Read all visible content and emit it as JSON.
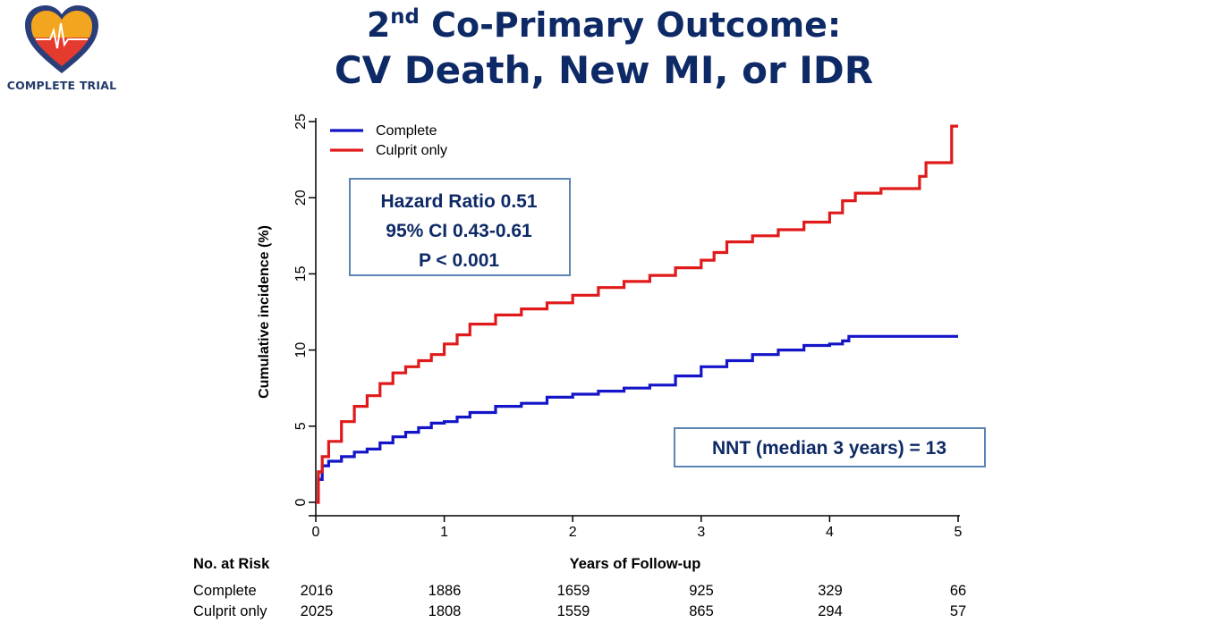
{
  "logo": {
    "text": "COMPLETE TRIAL"
  },
  "title": {
    "line1_main": "2",
    "line1_sup": "nd",
    "line1_rest": " Co-Primary Outcome:",
    "line2": "CV Death, New MI, or IDR"
  },
  "colors": {
    "complete": "#1414c8",
    "culprit": "#e01a1a",
    "box_border": "#5a84b4",
    "box_text": "#0e2a66",
    "title": "#0e2a66"
  },
  "boxes": {
    "hr": [
      "Hazard Ratio 0.51",
      "95% CI 0.43-0.61",
      "P < 0.001"
    ],
    "nnt": "NNT (median 3 years) = 13"
  },
  "risk_table": {
    "header": "No. at Risk",
    "xlabel": "Years of Follow-up",
    "rows": [
      {
        "label": "Complete",
        "values": [
          2016,
          1886,
          1659,
          925,
          329,
          66
        ]
      },
      {
        "label": "Culprit only",
        "values": [
          2025,
          1808,
          1559,
          865,
          294,
          57
        ]
      }
    ]
  },
  "chart_data": {
    "type": "line",
    "step": true,
    "ylabel": "Cumulative incidence (%)",
    "xlabel": "Years of Follow-up",
    "xlim": [
      0,
      5
    ],
    "ylim": [
      0,
      25
    ],
    "xticks": [
      0,
      1,
      2,
      3,
      4,
      5
    ],
    "yticks": [
      0,
      5,
      10,
      15,
      20,
      25
    ],
    "legend_position": "top-left",
    "series": [
      {
        "name": "Complete",
        "color": "#1414c8",
        "x": [
          0,
          0.02,
          0.05,
          0.1,
          0.2,
          0.3,
          0.4,
          0.5,
          0.6,
          0.7,
          0.8,
          0.9,
          1.0,
          1.1,
          1.2,
          1.4,
          1.6,
          1.8,
          2.0,
          2.2,
          2.4,
          2.6,
          2.8,
          3.0,
          3.2,
          3.4,
          3.6,
          3.8,
          4.0,
          4.1,
          4.15,
          4.3,
          5.0
        ],
        "y": [
          0,
          1.5,
          2.4,
          2.7,
          3.0,
          3.3,
          3.5,
          3.9,
          4.3,
          4.6,
          4.9,
          5.2,
          5.3,
          5.6,
          5.9,
          6.3,
          6.5,
          6.9,
          7.1,
          7.3,
          7.5,
          7.7,
          8.3,
          8.9,
          9.3,
          9.7,
          10.0,
          10.3,
          10.4,
          10.6,
          10.9,
          10.9,
          10.9
        ]
      },
      {
        "name": "Culprit only",
        "color": "#e01a1a",
        "x": [
          0,
          0.02,
          0.05,
          0.1,
          0.2,
          0.3,
          0.4,
          0.5,
          0.6,
          0.7,
          0.8,
          0.9,
          1.0,
          1.1,
          1.2,
          1.4,
          1.6,
          1.8,
          2.0,
          2.2,
          2.4,
          2.6,
          2.8,
          3.0,
          3.1,
          3.2,
          3.4,
          3.6,
          3.8,
          4.0,
          4.1,
          4.2,
          4.4,
          4.6,
          4.7,
          4.75,
          4.95,
          5.0
        ],
        "y": [
          0,
          2.0,
          3.0,
          4.0,
          5.3,
          6.3,
          7.0,
          7.8,
          8.5,
          8.9,
          9.3,
          9.7,
          10.4,
          11.0,
          11.7,
          12.3,
          12.7,
          13.1,
          13.6,
          14.1,
          14.5,
          14.9,
          15.4,
          15.9,
          16.4,
          17.1,
          17.5,
          17.9,
          18.4,
          19.0,
          19.8,
          20.3,
          20.6,
          20.6,
          21.4,
          22.3,
          24.7,
          24.7
        ]
      }
    ]
  }
}
